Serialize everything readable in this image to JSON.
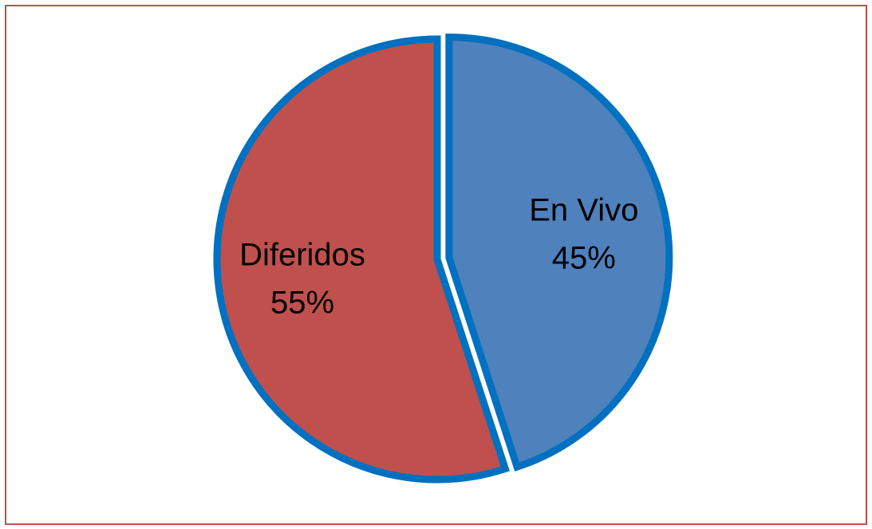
{
  "chart_data": {
    "type": "pie",
    "categories": [
      "En Vivo",
      "Diferidos"
    ],
    "values": [
      45,
      55
    ],
    "value_labels": [
      "45%",
      "55%"
    ],
    "colors": [
      "#4f81bd",
      "#c0504d"
    ],
    "explode": [
      true,
      false
    ]
  }
}
